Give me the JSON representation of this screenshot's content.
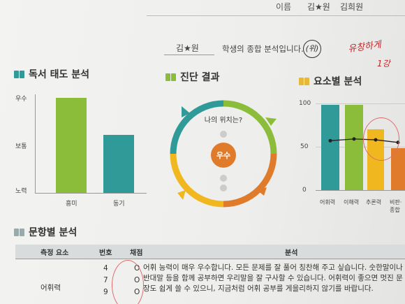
{
  "header": {
    "name_label": "이름",
    "name_value": "김★원",
    "signature": "김희원"
  },
  "student": {
    "name": "김★원",
    "suffix_text": "학생의 종합 분석입니다.",
    "circle_mark": "(위)",
    "red_note": "유창하게",
    "red_note2": "1강"
  },
  "reading": {
    "title": "독서 태도 분석",
    "ylabels": [
      "우수",
      "보통",
      "노력"
    ]
  },
  "diagnosis": {
    "title": "진단 결과",
    "question": "나의 위치는?",
    "result": "우수"
  },
  "elements": {
    "title": "요소별 분석",
    "ylabels": [
      "100",
      "50",
      "0"
    ]
  },
  "items": {
    "title": "문항별 분석",
    "headers": {
      "element": "측정 요소",
      "number": "번호",
      "score": "채점",
      "analysis": "분석"
    },
    "row": {
      "element": "어휘력",
      "numbers": [
        "4",
        "7",
        "9"
      ],
      "scores": [
        "O",
        "O",
        "O"
      ],
      "analysis": "어휘 능력이 매우 우수합니다. 모든 문제를 잘 풀어 칭찬해 주고 싶습니다. 숫한말이나 반대말 등을 함께 공부하면 우리말을 잘 구사할 수 있습니다. 어휘력이 좋으면 멋진 문장도 쉽게 쓸 수 있으니, 지금처럼 어휘 공부를 게을리하지 않기를 바랍니다."
    }
  },
  "colors": {
    "teal": "#2f9a98",
    "green": "#8bbd3a",
    "yellow": "#f0b81e",
    "orange": "#e07b2c"
  },
  "chart_data": [
    {
      "type": "bar",
      "title": "독서 태도 분석",
      "categories": [
        "흥미",
        "동기"
      ],
      "values": [
        85,
        52
      ],
      "ylim": [
        0,
        100
      ],
      "ytick_labels": [
        "우수",
        "보통",
        "노력"
      ]
    },
    {
      "type": "bar",
      "title": "요소별 분석",
      "categories": [
        "어휘력",
        "이해력",
        "추론력",
        "비판·종합"
      ],
      "values": [
        98,
        98,
        70,
        48
      ],
      "ylim": [
        0,
        100
      ],
      "yticks": [
        0,
        50,
        100
      ],
      "series_line": {
        "values": [
          57,
          59,
          58,
          55
        ]
      }
    }
  ]
}
